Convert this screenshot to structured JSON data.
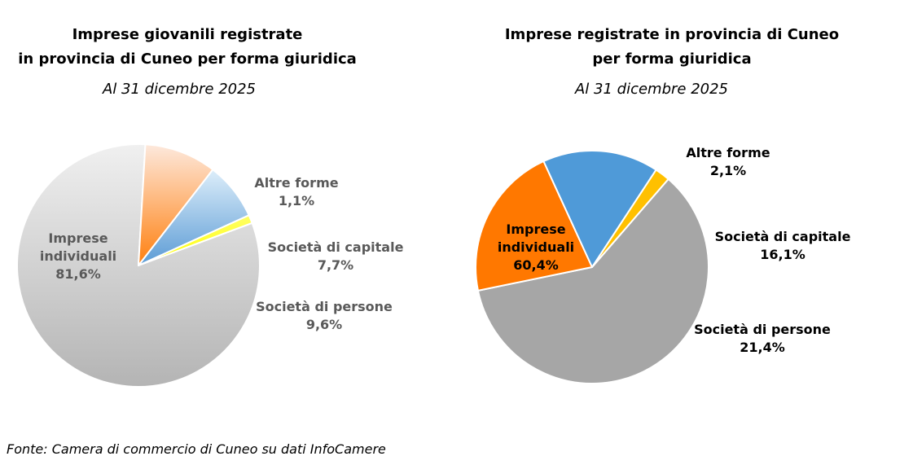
{
  "charts": [
    {
      "title_lines": [
        "Imprese giovanili registrate",
        "in provincia di Cuneo per forma giuridica"
      ],
      "subtitle": "Al 31 dicembre 2025",
      "label_color": "#595959",
      "chart_data": {
        "type": "pie",
        "slices": [
          {
            "label_lines": [
              "Imprese",
              "individuali"
            ],
            "value_label": "81,6%",
            "value": 81.6,
            "color": "#b4b4b4",
            "color_light": "#f0f0f0"
          },
          {
            "label_lines": [
              "Società di persone"
            ],
            "value_label": "9,6%",
            "value": 9.6,
            "color": "#ff7f0e",
            "color_light": "#fde9dd"
          },
          {
            "label_lines": [
              "Società di capitale"
            ],
            "value_label": "7,7%",
            "value": 7.7,
            "color": "#5b9bd5",
            "color_light": "#ddeefa"
          },
          {
            "label_lines": [
              "Altre forme"
            ],
            "value_label": "1,1%",
            "value": 1.1,
            "color": "#ffff00",
            "color_light": "#ffff66"
          }
        ]
      }
    },
    {
      "title_lines": [
        "Imprese registrate in provincia di Cuneo",
        "per forma giuridica"
      ],
      "subtitle": "Al 31 dicembre 2025",
      "label_color": "#000000",
      "chart_data": {
        "type": "pie",
        "slices": [
          {
            "label_lines": [
              "Imprese",
              "individuali"
            ],
            "value_label": "60,4%",
            "value": 60.4,
            "color": "#a6a6a6"
          },
          {
            "label_lines": [
              "Società di persone"
            ],
            "value_label": "21,4%",
            "value": 21.4,
            "color": "#ff7800"
          },
          {
            "label_lines": [
              "Società di capitale"
            ],
            "value_label": "16,1%",
            "value": 16.1,
            "color": "#4f9ad8"
          },
          {
            "label_lines": [
              "Altre forme"
            ],
            "value_label": "2,1%",
            "value": 2.1,
            "color": "#ffc000"
          }
        ]
      }
    }
  ],
  "source": "Fonte: Camera di commercio di Cuneo su dati InfoCamere"
}
